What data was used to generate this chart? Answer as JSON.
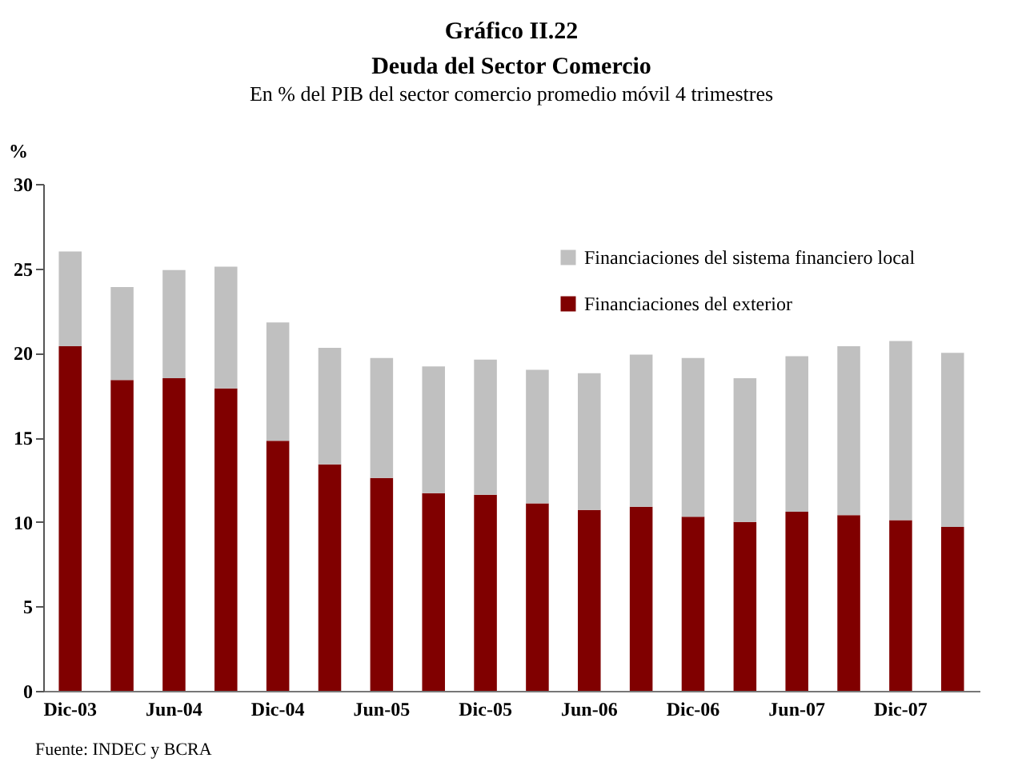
{
  "chart_data": {
    "type": "bar",
    "title": "Gráfico II.22\nDeuda del Sector Comercio",
    "subtitle": "En % del PIB del sector comercio promedio móvil 4 trimestres",
    "ylabel": "%",
    "categories": [
      "Dic-03",
      null,
      "Jun-04",
      null,
      "Dic-04",
      null,
      "Jun-05",
      null,
      "Dic-05",
      null,
      "Jun-06",
      null,
      "Dic-06",
      null,
      "Jun-07",
      null,
      "Dic-07",
      null
    ],
    "stacked": true,
    "series": [
      {
        "name": "Financiaciones del exterior",
        "color": "#800000",
        "values": [
          20.4,
          18.4,
          18.5,
          17.9,
          14.8,
          13.4,
          12.6,
          11.7,
          11.6,
          11.1,
          10.7,
          10.9,
          10.3,
          10.0,
          10.6,
          10.4,
          10.1,
          9.7
        ]
      },
      {
        "name": "Financiaciones del sistema financiero local",
        "color": "#c0c0c0",
        "values": [
          5.6,
          5.5,
          6.4,
          7.2,
          7.0,
          6.9,
          7.1,
          7.5,
          8.0,
          7.9,
          8.1,
          9.0,
          9.4,
          8.5,
          9.2,
          10.0,
          10.6,
          10.3
        ]
      }
    ],
    "ylim": [
      0,
      30
    ],
    "yticks": [
      0,
      5,
      10,
      15,
      20,
      25,
      30
    ],
    "grid": false,
    "legend": "top right",
    "annotations": [
      "Fuente: INDEC y BCRA"
    ]
  }
}
